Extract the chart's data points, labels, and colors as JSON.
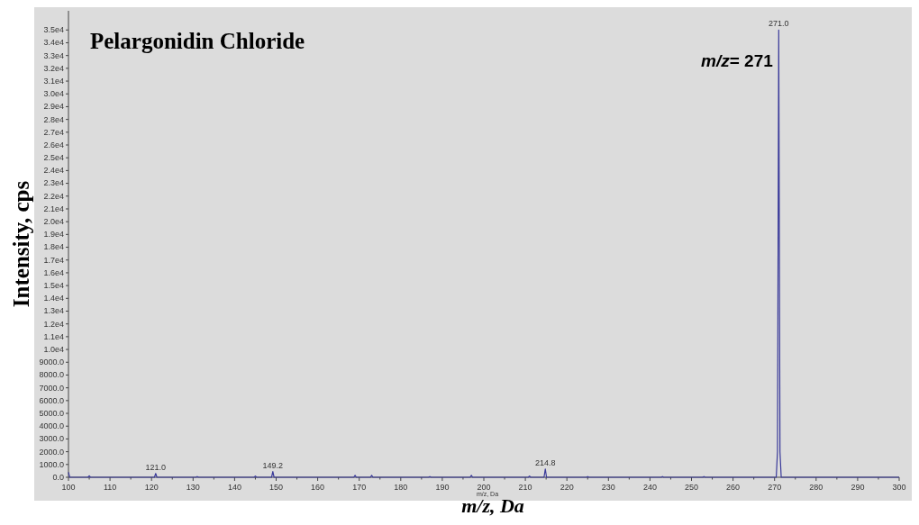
{
  "chart_data": {
    "type": "line",
    "title": "Pelargonidin Chloride",
    "xlabel": "m/z, Da",
    "ylabel": "Intensity, cps",
    "annotations": [
      "m/z= 271",
      "m/z, Da",
      {
        "text": "121.0",
        "x": 121,
        "y": 300
      },
      {
        "text": "149.2",
        "x": 149.2,
        "y": 450
      },
      {
        "text": "214.8",
        "x": 214.8,
        "y": 650
      },
      {
        "text": "271.0",
        "x": 271,
        "y": 35000
      }
    ],
    "x": [
      100,
      100.3,
      104.7,
      105,
      105.3,
      120.7,
      121,
      121.3,
      130.7,
      131,
      131.3,
      144.7,
      145,
      145.3,
      148.9,
      149.2,
      149.5,
      168.7,
      169,
      169.3,
      172.7,
      173,
      173.3,
      186.7,
      187,
      187.3,
      196.7,
      197,
      197.3,
      210.7,
      211,
      211.3,
      214.5,
      214.8,
      215.1,
      224.7,
      225,
      225.3,
      242.7,
      243,
      243.3,
      252.7,
      253,
      253.3,
      270.4,
      270.7,
      271,
      271.3,
      271.6,
      300
    ],
    "series": [
      {
        "color": "#3a3a9a",
        "values": [
          400,
          0,
          0,
          120,
          0,
          0,
          300,
          0,
          0,
          60,
          0,
          0,
          100,
          0,
          0,
          450,
          0,
          0,
          150,
          0,
          0,
          150,
          0,
          0,
          60,
          0,
          0,
          150,
          0,
          0,
          100,
          0,
          0,
          650,
          0,
          0,
          60,
          0,
          0,
          60,
          0,
          0,
          60,
          0,
          0,
          2000,
          35000,
          2000,
          0,
          0
        ]
      }
    ],
    "xlim": [
      100,
      300
    ],
    "xticks": [
      100,
      {
        "value": 105,
        "label": null
      },
      110,
      {
        "value": 115,
        "label": null
      },
      120,
      {
        "value": 125,
        "label": null
      },
      130,
      {
        "value": 135,
        "label": null
      },
      140,
      {
        "value": 145,
        "label": null
      },
      150,
      {
        "value": 155,
        "label": null
      },
      160,
      {
        "value": 165,
        "label": null
      },
      170,
      {
        "value": 175,
        "label": null
      },
      180,
      {
        "value": 185,
        "label": null
      },
      190,
      {
        "value": 195,
        "label": null
      },
      200,
      {
        "value": 205,
        "label": null
      },
      210,
      {
        "value": 215,
        "label": null
      },
      220,
      {
        "value": 225,
        "label": null
      },
      230,
      {
        "value": 235,
        "label": null
      },
      240,
      {
        "value": 245,
        "label": null
      },
      250,
      {
        "value": 255,
        "label": null
      },
      260,
      {
        "value": 265,
        "label": null
      },
      270,
      {
        "value": 275,
        "label": null
      },
      280,
      {
        "value": 285,
        "label": null
      },
      290,
      {
        "value": 295,
        "label": null
      },
      300
    ],
    "ylim": [
      0,
      36500
    ],
    "yticks": [
      {
        "value": 0,
        "label": "0.0"
      },
      {
        "value": 1000,
        "label": "1000.0"
      },
      {
        "value": 2000,
        "label": "2000.0"
      },
      {
        "value": 3000,
        "label": "3000.0"
      },
      {
        "value": 4000,
        "label": "4000.0"
      },
      {
        "value": 5000,
        "label": "5000.0"
      },
      {
        "value": 6000,
        "label": "6000.0"
      },
      {
        "value": 7000,
        "label": "7000.0"
      },
      {
        "value": 8000,
        "label": "8000.0"
      },
      {
        "value": 9000,
        "label": "9000.0"
      },
      {
        "value": 10000,
        "label": "1.0e4"
      },
      {
        "value": 11000,
        "label": "1.1e4"
      },
      {
        "value": 12000,
        "label": "1.2e4"
      },
      {
        "value": 13000,
        "label": "1.3e4"
      },
      {
        "value": 14000,
        "label": "1.4e4"
      },
      {
        "value": 15000,
        "label": "1.5e4"
      },
      {
        "value": 16000,
        "label": "1.6e4"
      },
      {
        "value": 17000,
        "label": "1.7e4"
      },
      {
        "value": 18000,
        "label": "1.8e4"
      },
      {
        "value": 19000,
        "label": "1.9e4"
      },
      {
        "value": 20000,
        "label": "2.0e4"
      },
      {
        "value": 21000,
        "label": "2.1e4"
      },
      {
        "value": 22000,
        "label": "2.2e4"
      },
      {
        "value": 23000,
        "label": "2.3e4"
      },
      {
        "value": 24000,
        "label": "2.4e4"
      },
      {
        "value": 25000,
        "label": "2.5e4"
      },
      {
        "value": 26000,
        "label": "2.6e4"
      },
      {
        "value": 27000,
        "label": "2.7e4"
      },
      {
        "value": 28000,
        "label": "2.8e4"
      },
      {
        "value": 29000,
        "label": "2.9e4"
      },
      {
        "value": 30000,
        "label": "3.0e4"
      },
      {
        "value": 31000,
        "label": "3.1e4"
      },
      {
        "value": 32000,
        "label": "3.2e4"
      },
      {
        "value": 33000,
        "label": "3.3e4"
      },
      {
        "value": 34000,
        "label": "3.4e4"
      },
      {
        "value": 35000,
        "label": "3.5e4"
      }
    ],
    "grid": false,
    "marker": "none",
    "line_style": "solid"
  }
}
